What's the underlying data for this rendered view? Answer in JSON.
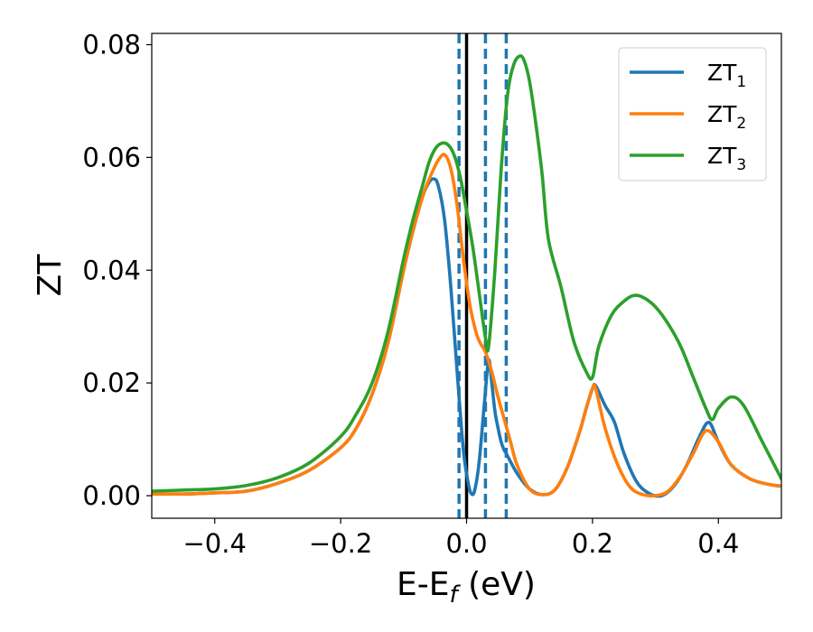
{
  "chart_data": {
    "type": "line",
    "xlabel": "E-E",
    "xlabel_sub": "f",
    "xlabel_unit": " (eV)",
    "ylabel": "ZT",
    "xlim": [
      -0.5,
      0.5
    ],
    "ylim": [
      -0.004,
      0.082
    ],
    "x_ticks": [
      -0.4,
      -0.2,
      0.0,
      0.2,
      0.4
    ],
    "x_tick_labels": [
      "−0.4",
      "−0.2",
      "0.0",
      "0.2",
      "0.4"
    ],
    "y_ticks": [
      0.0,
      0.02,
      0.04,
      0.06,
      0.08
    ],
    "y_tick_labels": [
      "0.00",
      "0.02",
      "0.04",
      "0.06",
      "0.08"
    ],
    "grid": false,
    "legend_position": "top-right",
    "vertical_lines": [
      {
        "x": 0.0,
        "style": "solid",
        "color": "#000000"
      },
      {
        "x": -0.012,
        "style": "dashed",
        "color": "#1f77b4"
      },
      {
        "x": 0.03,
        "style": "dashed",
        "color": "#1f77b4"
      },
      {
        "x": 0.063,
        "style": "dashed",
        "color": "#1f77b4"
      }
    ],
    "series": [
      {
        "name": "ZT",
        "name_sub": "1",
        "color": "#1f77b4",
        "x": [
          -0.5,
          -0.45,
          -0.4,
          -0.35,
          -0.3,
          -0.25,
          -0.2,
          -0.175,
          -0.15,
          -0.125,
          -0.1,
          -0.085,
          -0.07,
          -0.06,
          -0.052,
          -0.045,
          -0.035,
          -0.025,
          -0.015,
          -0.005,
          0.003,
          0.008,
          0.013,
          0.02,
          0.028,
          0.035,
          0.04,
          0.045,
          0.05,
          0.055,
          0.06,
          0.063,
          0.08,
          0.1,
          0.12,
          0.14,
          0.16,
          0.18,
          0.19,
          0.2,
          0.205,
          0.22,
          0.235,
          0.25,
          0.27,
          0.29,
          0.31,
          0.33,
          0.35,
          0.37,
          0.385,
          0.4,
          0.42,
          0.45,
          0.48,
          0.5
        ],
        "y": [
          0.0003,
          0.0003,
          0.0005,
          0.0008,
          0.0022,
          0.0045,
          0.0085,
          0.012,
          0.018,
          0.027,
          0.04,
          0.047,
          0.053,
          0.0555,
          0.0562,
          0.055,
          0.049,
          0.037,
          0.022,
          0.008,
          0.002,
          0.0003,
          0.001,
          0.006,
          0.016,
          0.024,
          0.02,
          0.015,
          0.012,
          0.0095,
          0.008,
          0.0075,
          0.004,
          0.0012,
          0.0002,
          0.001,
          0.005,
          0.0115,
          0.0155,
          0.019,
          0.0195,
          0.016,
          0.013,
          0.0075,
          0.0025,
          0.0004,
          0.0,
          0.0018,
          0.0055,
          0.0105,
          0.013,
          0.0095,
          0.0055,
          0.003,
          0.002,
          0.0017
        ]
      },
      {
        "name": "ZT",
        "name_sub": "2",
        "color": "#ff7f0e",
        "x": [
          -0.5,
          -0.45,
          -0.4,
          -0.35,
          -0.3,
          -0.25,
          -0.2,
          -0.175,
          -0.15,
          -0.125,
          -0.1,
          -0.085,
          -0.07,
          -0.06,
          -0.052,
          -0.045,
          -0.035,
          -0.025,
          -0.015,
          -0.005,
          0.005,
          0.015,
          0.022,
          0.03,
          0.04,
          0.05,
          0.06,
          0.07,
          0.08,
          0.1,
          0.12,
          0.14,
          0.16,
          0.18,
          0.19,
          0.2,
          0.205,
          0.22,
          0.24,
          0.26,
          0.28,
          0.3,
          0.32,
          0.34,
          0.36,
          0.38,
          0.4,
          0.42,
          0.45,
          0.48,
          0.5
        ],
        "y": [
          0.0003,
          0.0003,
          0.0005,
          0.0008,
          0.0022,
          0.0045,
          0.0085,
          0.012,
          0.018,
          0.027,
          0.04,
          0.047,
          0.053,
          0.056,
          0.058,
          0.0595,
          0.0605,
          0.058,
          0.0515,
          0.042,
          0.034,
          0.029,
          0.027,
          0.0255,
          0.022,
          0.0175,
          0.0135,
          0.0095,
          0.0055,
          0.0012,
          0.0002,
          0.001,
          0.005,
          0.0115,
          0.0155,
          0.019,
          0.019,
          0.012,
          0.0055,
          0.0015,
          0.0002,
          0.0,
          0.0008,
          0.0035,
          0.0075,
          0.0115,
          0.0095,
          0.0055,
          0.003,
          0.002,
          0.0017
        ]
      },
      {
        "name": "ZT",
        "name_sub": "3",
        "color": "#2ca02c",
        "x": [
          -0.5,
          -0.45,
          -0.4,
          -0.35,
          -0.3,
          -0.25,
          -0.2,
          -0.175,
          -0.15,
          -0.125,
          -0.1,
          -0.085,
          -0.07,
          -0.06,
          -0.05,
          -0.04,
          -0.03,
          -0.02,
          -0.01,
          0.0,
          0.01,
          0.02,
          0.03,
          0.035,
          0.045,
          0.055,
          0.065,
          0.075,
          0.085,
          0.092,
          0.1,
          0.11,
          0.12,
          0.13,
          0.15,
          0.17,
          0.19,
          0.2,
          0.21,
          0.23,
          0.25,
          0.265,
          0.28,
          0.3,
          0.32,
          0.34,
          0.36,
          0.38,
          0.39,
          0.4,
          0.42,
          0.44,
          0.47,
          0.5
        ],
        "y": [
          0.0008,
          0.001,
          0.0012,
          0.0018,
          0.0032,
          0.0058,
          0.0105,
          0.0145,
          0.02,
          0.029,
          0.042,
          0.049,
          0.055,
          0.059,
          0.0615,
          0.0625,
          0.0623,
          0.0605,
          0.0565,
          0.0505,
          0.044,
          0.036,
          0.028,
          0.0265,
          0.04,
          0.058,
          0.071,
          0.0765,
          0.078,
          0.077,
          0.0735,
          0.066,
          0.057,
          0.0455,
          0.037,
          0.0275,
          0.022,
          0.021,
          0.0265,
          0.032,
          0.0345,
          0.0355,
          0.0352,
          0.0335,
          0.0305,
          0.0265,
          0.021,
          0.0155,
          0.0135,
          0.0155,
          0.0175,
          0.016,
          0.0095,
          0.003
        ]
      }
    ]
  }
}
